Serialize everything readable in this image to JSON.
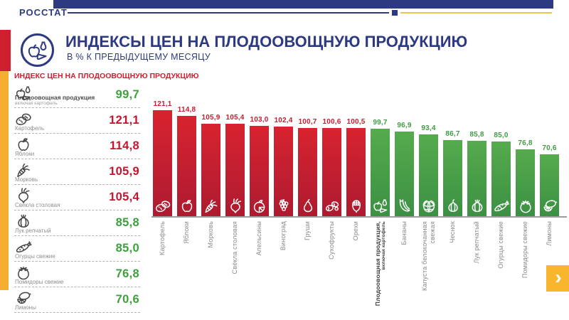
{
  "brand": "РОССТАТ",
  "header": {
    "title": "ИНДЕКСЫ ЦЕН НА ПЛОДООВОЩНУЮ ПРОДУКЦИЮ",
    "subtitle": "В % К ПРЕДЫДУЩЕМУ МЕСЯЦУ",
    "logo_icon": "fruits-icon"
  },
  "colors": {
    "navy": "#2d3a82",
    "accent_red": "#cf1f2f",
    "accent_yellow": "#f6ad2f",
    "bar_increase": "#c01f31",
    "bar_decrease": "#479c47",
    "value_increase": "#c41530",
    "value_decrease": "#3da03c"
  },
  "sidebar": {
    "title": "ИНДЕКС ЦЕН НА ПЛОДООВОЩНУЮ ПРОДУКЦИЮ",
    "items": [
      {
        "label": "Плодоовощная продукция",
        "sublabel": "включая картофель",
        "value": "99,7",
        "change": "decrease",
        "icon": "fruits-icon",
        "emphasis": true
      },
      {
        "label": "Картофель",
        "value": "121,1",
        "change": "increase",
        "icon": "potato-icon"
      },
      {
        "label": "Яблоки",
        "value": "114,8",
        "change": "increase",
        "icon": "apple-icon"
      },
      {
        "label": "Морковь",
        "value": "105,9",
        "change": "increase",
        "icon": "carrot-icon"
      },
      {
        "label": "Свёкла столовая",
        "value": "105,4",
        "change": "increase",
        "icon": "beet-icon"
      },
      {
        "label": "Лук репчатый",
        "value": "85,8",
        "change": "decrease",
        "icon": "onion-icon"
      },
      {
        "label": "Огурцы свежие",
        "value": "85,0",
        "change": "decrease",
        "icon": "cucumber-icon"
      },
      {
        "label": "Помидоры свежие",
        "value": "76,8",
        "change": "decrease",
        "icon": "tomato-icon"
      },
      {
        "label": "Лимоны",
        "value": "70,6",
        "change": "decrease",
        "icon": "lemon-icon"
      }
    ]
  },
  "chart_data": {
    "type": "bar",
    "title": "ИНДЕКСЫ ЦЕН НА ПЛОДООВОЩНУЮ ПРОДУКЦИЮ",
    "subtitle": "В % К ПРЕДЫДУЩЕМУ МЕСЯЦУ",
    "unit": "% к предыдущему месяцу",
    "color_rule": {
      "increase_red": ">= 100",
      "decrease_green": "< 100"
    },
    "grid": false,
    "legend": false,
    "bars": [
      {
        "lines": [
          "Картофель"
        ],
        "value": 121.1,
        "label": "121,1",
        "change": "increase",
        "icon": "potato-icon"
      },
      {
        "lines": [
          "Яблоки"
        ],
        "value": 114.8,
        "label": "114,8",
        "change": "increase",
        "icon": "apple-icon"
      },
      {
        "lines": [
          "Морковь"
        ],
        "value": 105.9,
        "label": "105,9",
        "change": "increase",
        "icon": "carrot-icon"
      },
      {
        "lines": [
          "Свёкла столовая"
        ],
        "value": 105.4,
        "label": "105,4",
        "change": "increase",
        "icon": "beet-icon"
      },
      {
        "lines": [
          "Апельсины"
        ],
        "value": 103.0,
        "label": "103,0",
        "change": "increase",
        "icon": "orange-icon"
      },
      {
        "lines": [
          "Виноград"
        ],
        "value": 102.4,
        "label": "102,4",
        "change": "increase",
        "icon": "grapes-icon"
      },
      {
        "lines": [
          "Груши"
        ],
        "value": 100.7,
        "label": "100,7",
        "change": "increase",
        "icon": "pear-icon"
      },
      {
        "lines": [
          "Сухофрукты"
        ],
        "value": 100.6,
        "label": "100,6",
        "change": "increase",
        "icon": "dried-fruits-icon"
      },
      {
        "lines": [
          "Орехи"
        ],
        "value": 100.5,
        "label": "100,5",
        "change": "increase",
        "icon": "nut-icon"
      },
      {
        "lines": [
          "Плодоовощная продукция,",
          "включая картофель"
        ],
        "value": 99.7,
        "label": "99,7",
        "change": "decrease",
        "icon": "fruits-icon",
        "emphasis": true
      },
      {
        "lines": [
          "Бананы"
        ],
        "value": 96.9,
        "label": "96,9",
        "change": "decrease",
        "icon": "banana-icon"
      },
      {
        "lines": [
          "Капуста белокочанная",
          "свежая"
        ],
        "value": 93.4,
        "label": "93,4",
        "change": "decrease",
        "icon": "cabbage-icon"
      },
      {
        "lines": [
          "Чеснок"
        ],
        "value": 86.7,
        "label": "86,7",
        "change": "decrease",
        "icon": "garlic-icon"
      },
      {
        "lines": [
          "Лук репчатый"
        ],
        "value": 85.8,
        "label": "85,8",
        "change": "decrease",
        "icon": "onion-icon"
      },
      {
        "lines": [
          "Огурцы свежие"
        ],
        "value": 85.0,
        "label": "85,0",
        "change": "decrease",
        "icon": "cucumber-icon"
      },
      {
        "lines": [
          "Помидоры свежие"
        ],
        "value": 76.8,
        "label": "76,8",
        "change": "decrease",
        "icon": "tomato-icon"
      },
      {
        "lines": [
          "Лимоны"
        ],
        "value": 70.6,
        "label": "70,6",
        "change": "decrease",
        "icon": "lemon-icon"
      }
    ]
  },
  "nav": {
    "next_label": "›"
  }
}
